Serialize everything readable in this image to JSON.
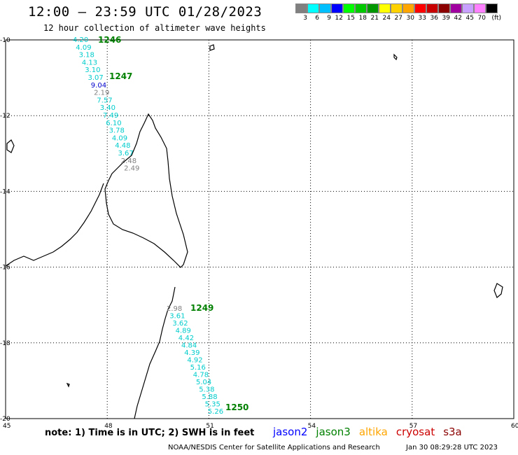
{
  "header": {
    "title": "12:00 – 23:59 UTC 01/28/2023",
    "subtitle": "12 hour collection of altimeter wave heights"
  },
  "color_scale": {
    "labels": [
      "3",
      "6",
      "9",
      "12",
      "15",
      "18",
      "21",
      "24",
      "27",
      "30",
      "33",
      "36",
      "39",
      "42",
      "45",
      "70",
      "(ft)"
    ],
    "colors": [
      "#808080",
      "#00ffff",
      "#00bfff",
      "#0000ff",
      "#00ff00",
      "#00c800",
      "#009600",
      "#ffff00",
      "#ffd200",
      "#ffa500",
      "#ff0000",
      "#c80000",
      "#8b0000",
      "#a000a0",
      "#c8a0ff",
      "#ff80ff",
      "#000000"
    ]
  },
  "axes": {
    "lon_labels": [
      "45",
      "48",
      "51",
      "54",
      "57",
      "60"
    ],
    "lat_labels": [
      "-10",
      "-12",
      "-14",
      "-16",
      "-18",
      "-20"
    ]
  },
  "passes": [
    {
      "id": "1246",
      "color": "#008000"
    },
    {
      "id": "1247",
      "color": "#008000"
    },
    {
      "id": "1249",
      "color": "#008000"
    },
    {
      "id": "1250",
      "color": "#008000"
    }
  ],
  "observations": {
    "track1": [
      {
        "v": "4.20",
        "c": "#00cccc"
      },
      {
        "v": "4.09",
        "c": "#00cccc"
      },
      {
        "v": "3.18",
        "c": "#00cccc"
      },
      {
        "v": "4.13",
        "c": "#00cccc"
      },
      {
        "v": "3.10",
        "c": "#00cccc"
      },
      {
        "v": "3.07",
        "c": "#00cccc"
      },
      {
        "v": "9.04",
        "c": "#0000cc"
      },
      {
        "v": "2.19",
        "c": "#808080"
      },
      {
        "v": "7.57",
        "c": "#00cccc"
      },
      {
        "v": "3.40",
        "c": "#00cccc"
      },
      {
        "v": "7.49",
        "c": "#00cccc"
      },
      {
        "v": "6.10",
        "c": "#00cccc"
      },
      {
        "v": "3.78",
        "c": "#00cccc"
      },
      {
        "v": "4.09",
        "c": "#00cccc"
      },
      {
        "v": "4.48",
        "c": "#00cccc"
      },
      {
        "v": "3.67",
        "c": "#00cccc"
      },
      {
        "v": "2.48",
        "c": "#808080"
      },
      {
        "v": "2.49",
        "c": "#808080"
      }
    ],
    "track2": [
      {
        "v": "2.98",
        "c": "#808080"
      },
      {
        "v": "3.61",
        "c": "#00cccc"
      },
      {
        "v": "3.62",
        "c": "#00cccc"
      },
      {
        "v": "4.89",
        "c": "#00cccc"
      },
      {
        "v": "4.42",
        "c": "#00cccc"
      },
      {
        "v": "4.84",
        "c": "#00cccc"
      },
      {
        "v": "4.39",
        "c": "#00cccc"
      },
      {
        "v": "4.92",
        "c": "#00cccc"
      },
      {
        "v": "5.16",
        "c": "#00cccc"
      },
      {
        "v": "4.78",
        "c": "#00cccc"
      },
      {
        "v": "5.04",
        "c": "#00cccc"
      },
      {
        "v": "5.38",
        "c": "#00cccc"
      },
      {
        "v": "5.88",
        "c": "#00cccc"
      },
      {
        "v": "5.35",
        "c": "#00cccc"
      },
      {
        "v": "5.26",
        "c": "#00cccc"
      }
    ]
  },
  "footer": {
    "note": "note: 1) Time is in UTC; 2) SWH is in feet",
    "legend": [
      {
        "name": "jason2",
        "color": "#0000ff"
      },
      {
        "name": "jason3",
        "color": "#008000"
      },
      {
        "name": "altika",
        "color": "#ffa500"
      },
      {
        "name": "cryosat",
        "color": "#cc0000"
      },
      {
        "name": "s3a",
        "color": "#8b0000"
      }
    ],
    "credit": "NOAA/NESDIS Center for Satellite Applications and Research",
    "timestamp": "Jan 30 08:29:28 UTC 2023"
  }
}
